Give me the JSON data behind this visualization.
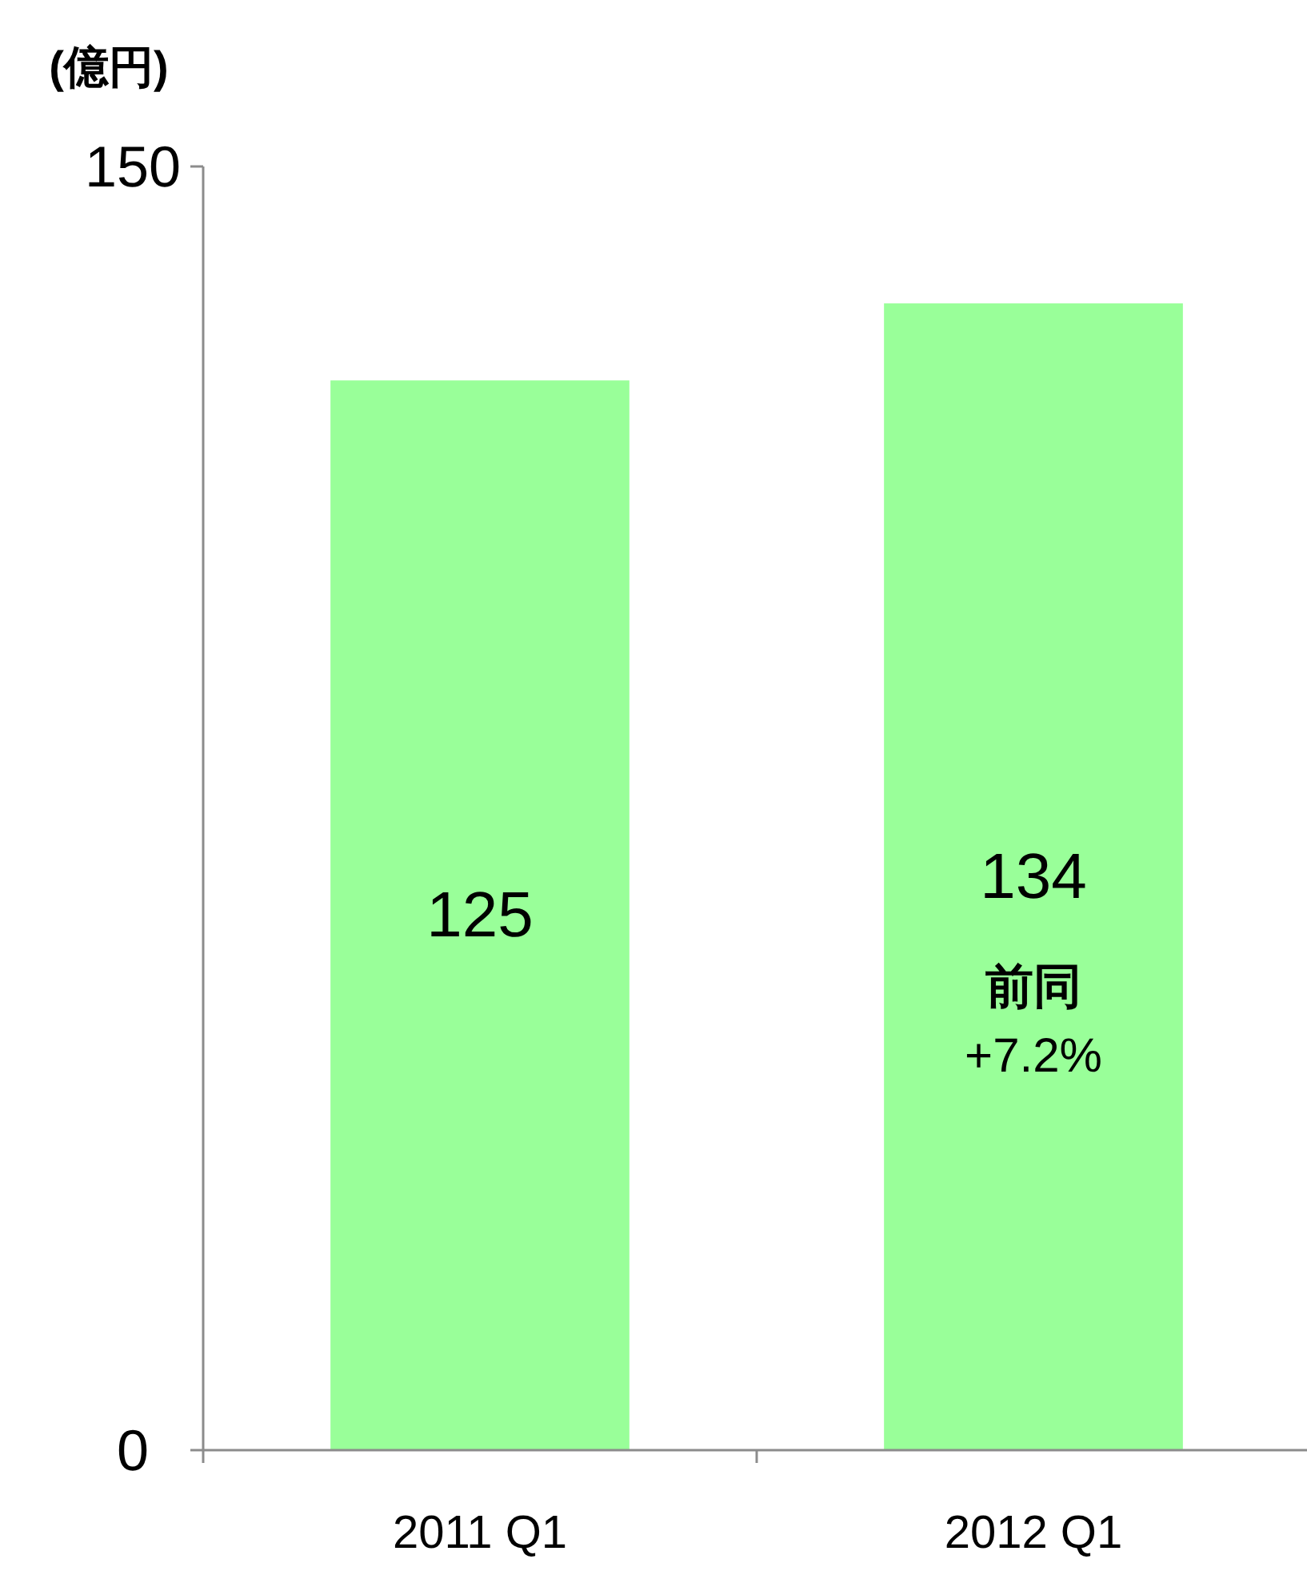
{
  "chart_data": {
    "type": "bar",
    "ylabel": "(億円)",
    "categories": [
      "2011 Q1",
      "2012 Q1"
    ],
    "values": [
      125,
      134
    ],
    "color": "#99ff99",
    "ylim": [
      0,
      150
    ],
    "yticks": [
      0,
      150
    ],
    "data_labels": true,
    "grid": false,
    "annotations": [
      "前同",
      "+7.2%"
    ]
  }
}
